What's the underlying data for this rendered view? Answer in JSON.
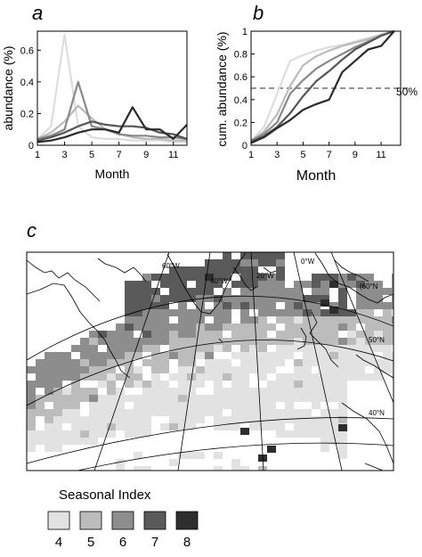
{
  "panels": {
    "a": {
      "letter": "a"
    },
    "b": {
      "letter": "b"
    },
    "c": {
      "letter": "c"
    }
  },
  "chart_data": [
    {
      "type": "line",
      "panel": "a",
      "xlabel": "Month",
      "ylabel": "abundance (%)",
      "xlim": [
        1,
        12
      ],
      "ylim": [
        0,
        0.72
      ],
      "xticks": [
        1,
        3,
        5,
        7,
        9,
        11
      ],
      "yticks": [
        0,
        0.2,
        0.4,
        0.6
      ],
      "ytick_labels": [
        "0",
        "0.2",
        "0.4",
        "0.6"
      ],
      "x": [
        1,
        2,
        3,
        4,
        5,
        6,
        7,
        8,
        9,
        10,
        11,
        12
      ],
      "series": [
        {
          "color": "#dddddd",
          "values": [
            0.04,
            0.12,
            0.7,
            0.12,
            0.05,
            0.04,
            0.04,
            0.03,
            0.03,
            0.03,
            0.02,
            0.02
          ]
        },
        {
          "color": "#bbbbbb",
          "values": [
            0.04,
            0.08,
            0.15,
            0.25,
            0.17,
            0.1,
            0.07,
            0.05,
            0.04,
            0.04,
            0.03,
            0.03
          ]
        },
        {
          "color": "#888888",
          "values": [
            0.04,
            0.06,
            0.1,
            0.4,
            0.12,
            0.1,
            0.07,
            0.06,
            0.06,
            0.05,
            0.05,
            0.04
          ]
        },
        {
          "color": "#555555",
          "values": [
            0.03,
            0.05,
            0.08,
            0.12,
            0.15,
            0.13,
            0.12,
            0.12,
            0.11,
            0.08,
            0.07,
            0.04
          ]
        },
        {
          "color": "#2a2a2a",
          "values": [
            0.02,
            0.03,
            0.05,
            0.08,
            0.1,
            0.1,
            0.08,
            0.24,
            0.1,
            0.1,
            0.04,
            0.13
          ]
        }
      ]
    },
    {
      "type": "line",
      "panel": "b",
      "xlabel": "Month",
      "ylabel": "cum. abundance (%)",
      "xlim": [
        1,
        12.5
      ],
      "ylim": [
        0,
        1
      ],
      "xticks": [
        1,
        3,
        5,
        7,
        9,
        11
      ],
      "yticks": [
        0,
        0.2,
        0.4,
        0.6,
        0.8,
        1
      ],
      "ytick_labels": [
        "0",
        "0.2",
        "0.4",
        "0.6",
        "0.8",
        "1"
      ],
      "reference_line": {
        "y": 0.5,
        "label": "50%"
      },
      "x": [
        1,
        2,
        3,
        4,
        5,
        6,
        7,
        8,
        9,
        10,
        11,
        12
      ],
      "series": [
        {
          "color": "#dddddd",
          "values": [
            0.04,
            0.16,
            0.45,
            0.74,
            0.79,
            0.83,
            0.86,
            0.88,
            0.91,
            0.94,
            0.97,
            1.0
          ]
        },
        {
          "color": "#bbbbbb",
          "values": [
            0.04,
            0.12,
            0.27,
            0.52,
            0.7,
            0.78,
            0.83,
            0.87,
            0.9,
            0.93,
            0.97,
            1.0
          ]
        },
        {
          "color": "#888888",
          "values": [
            0.04,
            0.1,
            0.2,
            0.45,
            0.57,
            0.67,
            0.74,
            0.8,
            0.86,
            0.91,
            0.96,
            1.0
          ]
        },
        {
          "color": "#555555",
          "values": [
            0.03,
            0.08,
            0.16,
            0.28,
            0.43,
            0.56,
            0.65,
            0.75,
            0.84,
            0.9,
            0.96,
            1.0
          ]
        },
        {
          "color": "#2a2a2a",
          "values": [
            0.02,
            0.07,
            0.15,
            0.22,
            0.31,
            0.36,
            0.4,
            0.64,
            0.74,
            0.84,
            0.87,
            1.0
          ]
        }
      ]
    }
  ],
  "map": {
    "lon_labels": [
      "60°W",
      "40°W",
      "20°W",
      "0°W",
      "(60°N"
    ],
    "lat_labels": [
      "50°N",
      "40°N"
    ]
  },
  "legend": {
    "title": "Seasonal Index",
    "items": [
      {
        "label": "4",
        "color": "#e2e2e2"
      },
      {
        "label": "5",
        "color": "#bcbcbc"
      },
      {
        "label": "6",
        "color": "#8d8d8d"
      },
      {
        "label": "7",
        "color": "#5a5a5a"
      },
      {
        "label": "8",
        "color": "#2e2e2e"
      }
    ]
  }
}
